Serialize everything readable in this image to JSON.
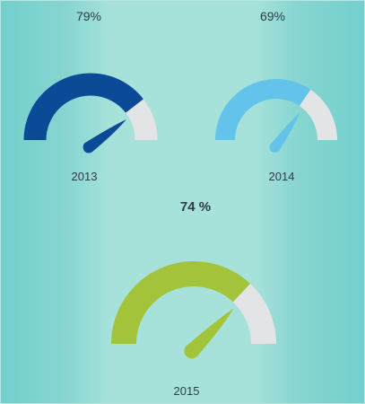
{
  "chart_data": [
    {
      "type": "gauge",
      "title": "2013",
      "value": 79,
      "value_label": "79%",
      "max": 100,
      "color": "#0b4a97"
    },
    {
      "type": "gauge",
      "title": "2014",
      "value": 69,
      "value_label": "69%",
      "max": 100,
      "color": "#63c3ea"
    },
    {
      "type": "gauge",
      "title": "2015",
      "value": 74,
      "value_label": "74 %",
      "max": 100,
      "color": "#a3c43a"
    }
  ],
  "colors": {
    "track": "#e3e4e6",
    "label_text": "#2f3b46"
  }
}
